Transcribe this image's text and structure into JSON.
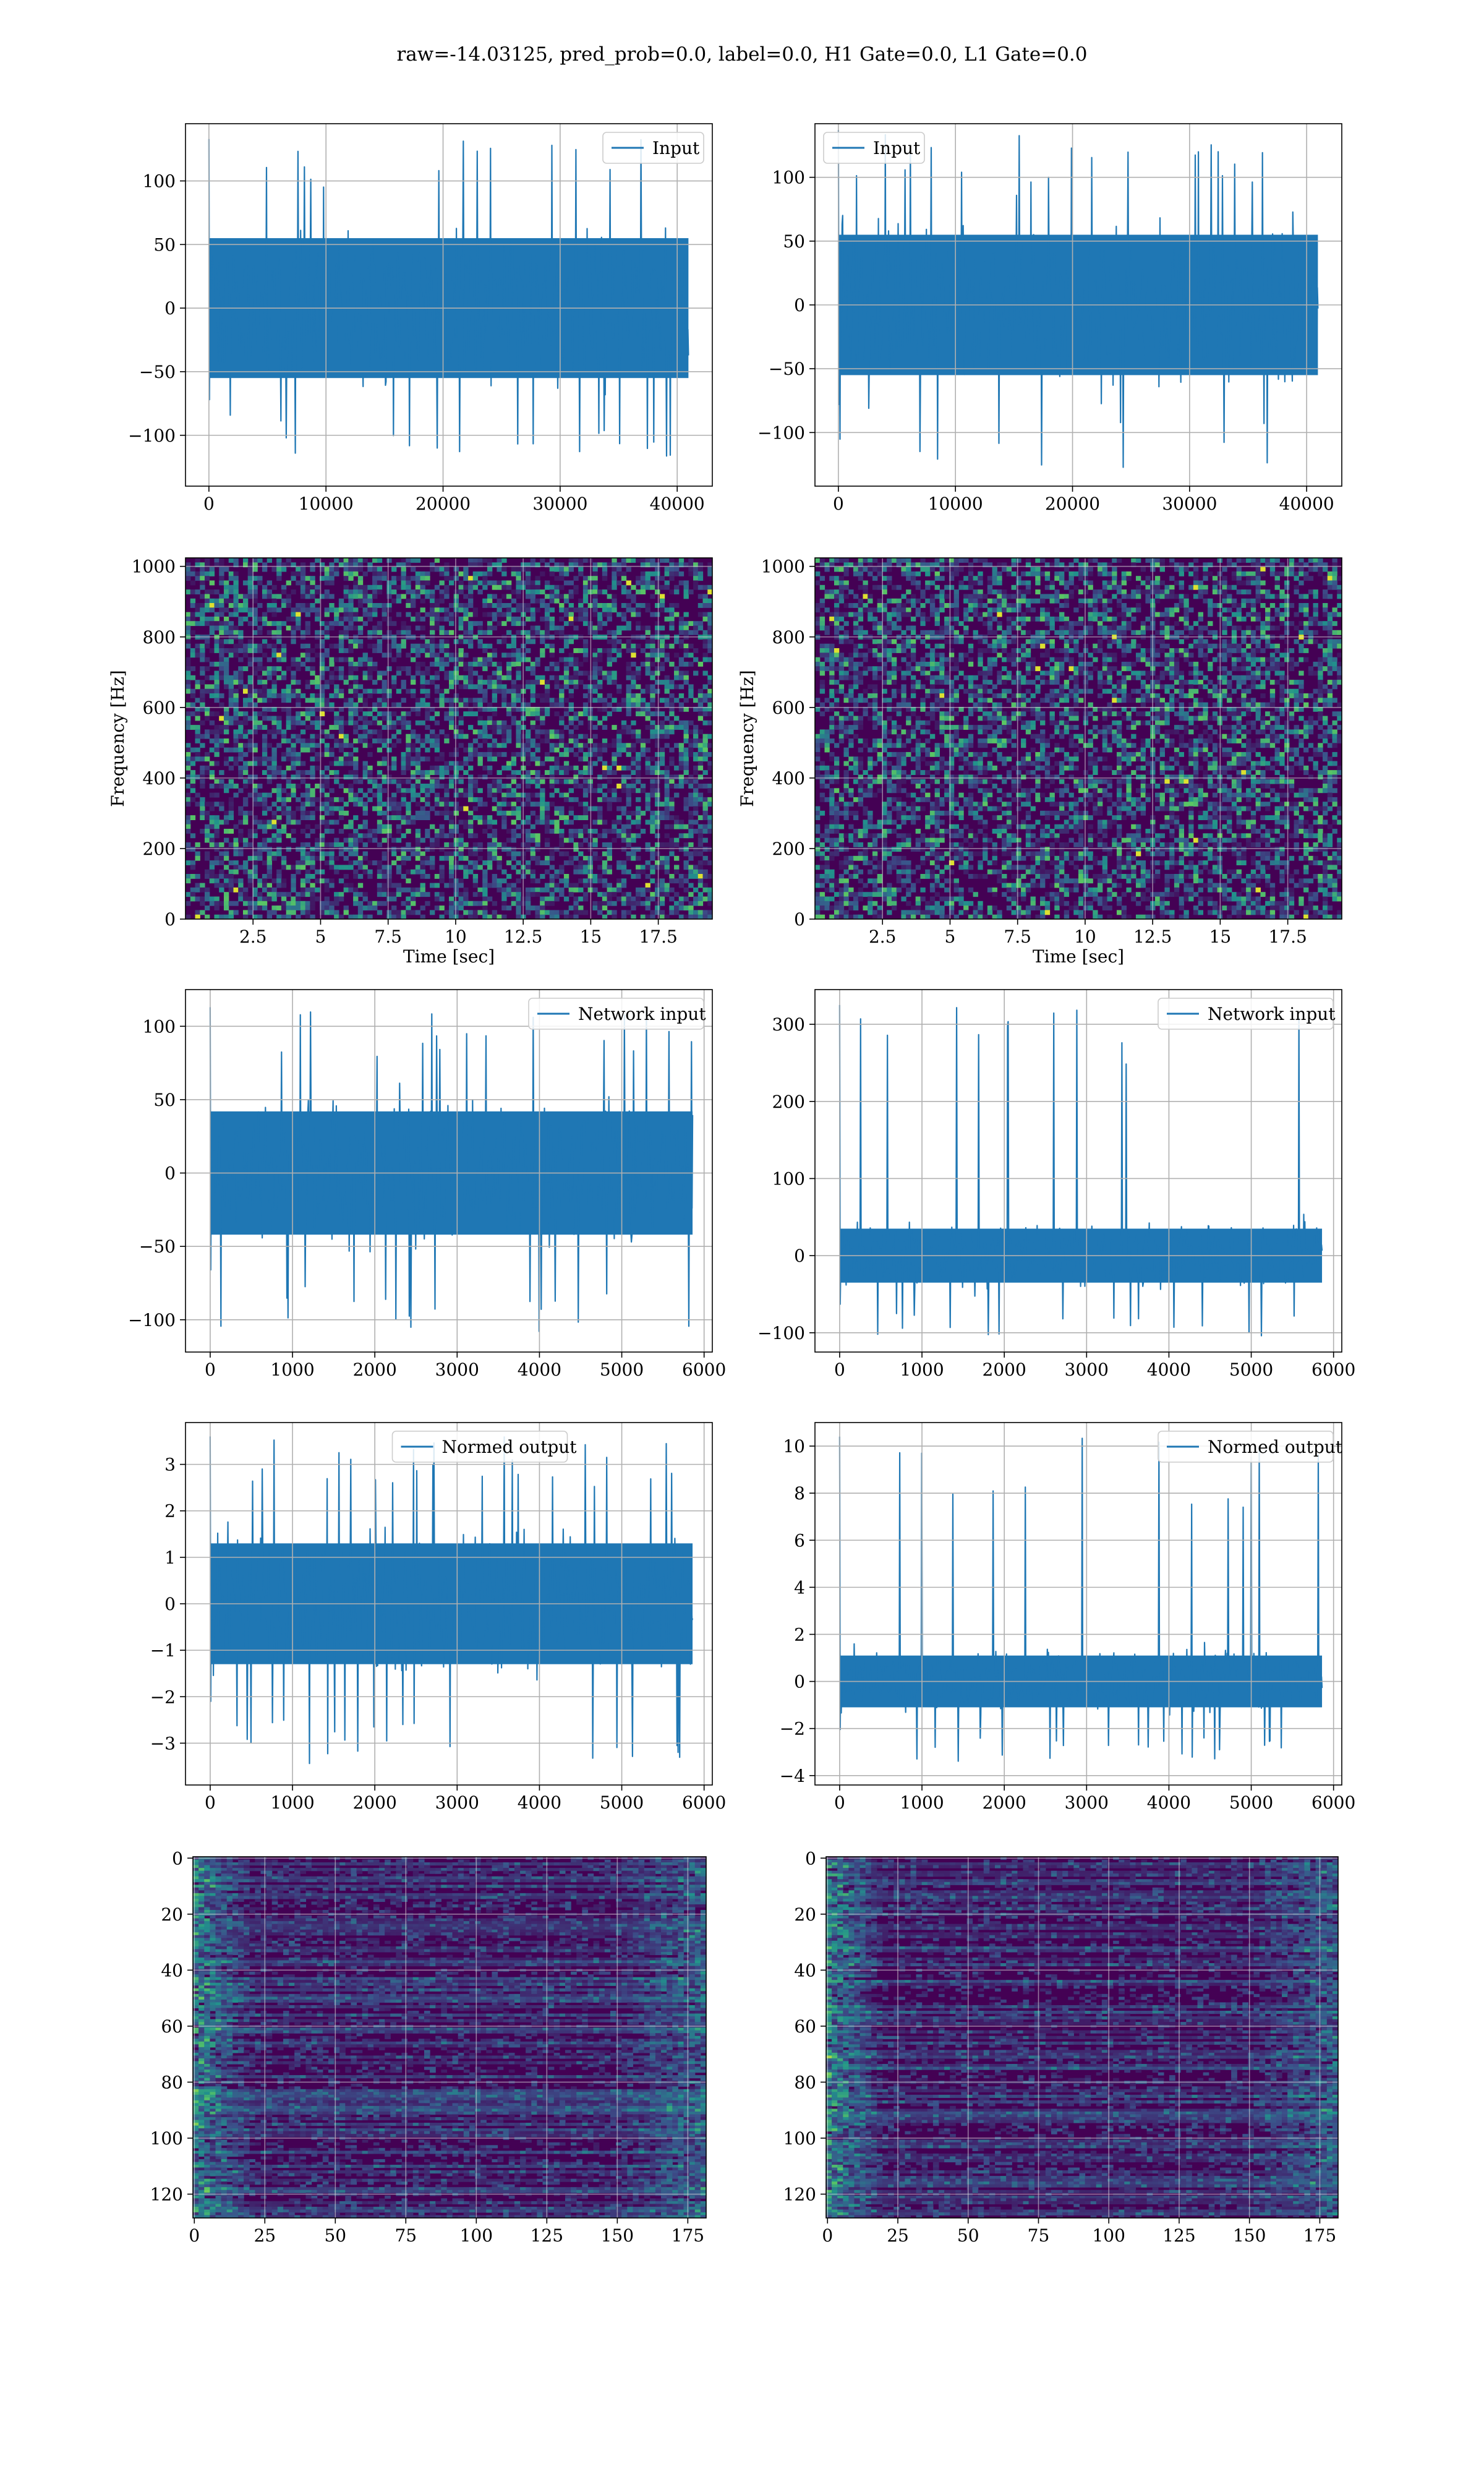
{
  "figure": {
    "suptitle": "raw=-14.03125, pred_prob=0.0, label=0.0, H1 Gate=0.0, L1 Gate=0.0"
  },
  "colors": {
    "series": "#1f77b4",
    "grid": "#b0b0b0",
    "viridis_low": "#440154",
    "viridis_mid": "#21918c",
    "viridis_high": "#fde725"
  },
  "chart_data": [
    {
      "id": "r1c1",
      "type": "line",
      "title": "",
      "xlabel": "",
      "ylabel": "",
      "xlim": [
        -2000,
        43000
      ],
      "ylim": [
        -140,
        145
      ],
      "xticks": [
        0,
        10000,
        20000,
        30000,
        40000
      ],
      "yticks": [
        -100,
        -50,
        0,
        50,
        100
      ],
      "legend": "upper right",
      "series": [
        {
          "name": "Input",
          "x_range": [
            0,
            40960
          ],
          "values_min": -120,
          "values_max": 133,
          "envelope_min": -55,
          "envelope_max": 55
        }
      ]
    },
    {
      "id": "r1c2",
      "type": "line",
      "title": "",
      "xlabel": "",
      "ylabel": "",
      "xlim": [
        -2000,
        43000
      ],
      "ylim": [
        -142,
        142
      ],
      "xticks": [
        0,
        10000,
        20000,
        30000,
        40000
      ],
      "yticks": [
        -100,
        -50,
        0,
        50,
        100
      ],
      "legend": "upper left",
      "series": [
        {
          "name": "Input",
          "x_range": [
            0,
            40960
          ],
          "values_min": -130,
          "values_max": 137,
          "envelope_min": -55,
          "envelope_max": 55
        }
      ]
    },
    {
      "id": "r2c1",
      "type": "heatmap",
      "title": "",
      "xlabel": "Time [sec]",
      "ylabel": "Frequency [Hz]",
      "xlim": [
        0,
        19.5
      ],
      "ylim": [
        0,
        1024
      ],
      "xticks": [
        2.5,
        5.0,
        7.5,
        10.0,
        12.5,
        15.0,
        17.5
      ],
      "yticks": [
        0,
        200,
        400,
        600,
        800,
        1000
      ],
      "colormap": "viridis"
    },
    {
      "id": "r2c2",
      "type": "heatmap",
      "title": "",
      "xlabel": "Time [sec]",
      "ylabel": "Frequency [Hz]",
      "xlim": [
        0,
        19.5
      ],
      "ylim": [
        0,
        1024
      ],
      "xticks": [
        2.5,
        5.0,
        7.5,
        10.0,
        12.5,
        15.0,
        17.5
      ],
      "yticks": [
        0,
        200,
        400,
        600,
        800,
        1000
      ],
      "colormap": "viridis"
    },
    {
      "id": "r3c1",
      "type": "line",
      "title": "",
      "xlabel": "",
      "ylabel": "",
      "xlim": [
        -300,
        6100
      ],
      "ylim": [
        -122,
        125
      ],
      "xticks": [
        0,
        1000,
        2000,
        3000,
        4000,
        5000,
        6000
      ],
      "yticks": [
        -100,
        -50,
        0,
        50,
        100
      ],
      "legend": "upper right",
      "series": [
        {
          "name": "Network input",
          "x_range": [
            0,
            5860
          ],
          "values_min": -110,
          "values_max": 113,
          "envelope_min": -42,
          "envelope_max": 42
        }
      ]
    },
    {
      "id": "r3c2",
      "type": "line",
      "title": "",
      "xlabel": "",
      "ylabel": "",
      "xlim": [
        -300,
        6100
      ],
      "ylim": [
        -125,
        345
      ],
      "xticks": [
        0,
        1000,
        2000,
        3000,
        4000,
        5000,
        6000
      ],
      "yticks": [
        -100,
        0,
        100,
        200,
        300
      ],
      "legend": "upper right",
      "series": [
        {
          "name": "Network input",
          "x_range": [
            0,
            5860
          ],
          "values_min": -105,
          "values_max": 325,
          "envelope_min": -35,
          "envelope_max": 35
        }
      ]
    },
    {
      "id": "r4c1",
      "type": "line",
      "title": "",
      "xlabel": "",
      "ylabel": "",
      "xlim": [
        -300,
        6100
      ],
      "ylim": [
        -3.9,
        3.9
      ],
      "xticks": [
        0,
        1000,
        2000,
        3000,
        4000,
        5000,
        6000
      ],
      "yticks": [
        -3,
        -2,
        -1,
        0,
        1,
        2,
        3
      ],
      "legend": "upper center",
      "series": [
        {
          "name": "Normed output",
          "x_range": [
            0,
            5860
          ],
          "values_min": -3.5,
          "values_max": 3.6,
          "envelope_min": -1.3,
          "envelope_max": 1.3
        }
      ]
    },
    {
      "id": "r4c2",
      "type": "line",
      "title": "",
      "xlabel": "",
      "ylabel": "",
      "xlim": [
        -300,
        6100
      ],
      "ylim": [
        -4.4,
        11.0
      ],
      "xticks": [
        0,
        1000,
        2000,
        3000,
        4000,
        5000,
        6000
      ],
      "yticks": [
        -4,
        -2,
        0,
        2,
        4,
        6,
        8,
        10
      ],
      "legend": "upper right",
      "series": [
        {
          "name": "Normed output",
          "x_range": [
            0,
            5860
          ],
          "values_min": -3.4,
          "values_max": 10.4,
          "envelope_min": -1.1,
          "envelope_max": 1.1
        }
      ]
    },
    {
      "id": "r5c1",
      "type": "heatmap",
      "title": "",
      "xlabel": "",
      "ylabel": "",
      "xlim": [
        -0.5,
        181.5
      ],
      "ylim": [
        128.5,
        -0.5
      ],
      "xticks": [
        0,
        25,
        50,
        75,
        100,
        125,
        150,
        175
      ],
      "yticks": [
        0,
        20,
        40,
        60,
        80,
        100,
        120
      ],
      "colormap": "viridis"
    },
    {
      "id": "r5c2",
      "type": "heatmap",
      "title": "",
      "xlabel": "",
      "ylabel": "",
      "xlim": [
        -0.5,
        181.5
      ],
      "ylim": [
        128.5,
        -0.5
      ],
      "xticks": [
        0,
        25,
        50,
        75,
        100,
        125,
        150,
        175
      ],
      "yticks": [
        0,
        20,
        40,
        60,
        80,
        100,
        120
      ],
      "colormap": "viridis"
    }
  ]
}
